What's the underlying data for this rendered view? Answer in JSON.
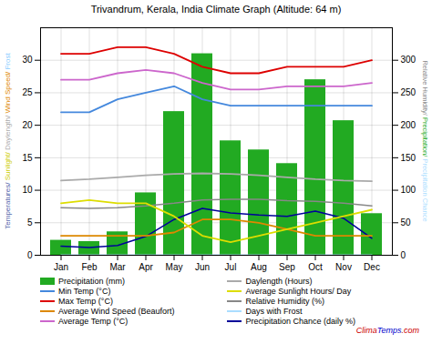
{
  "chart_data": {
    "type": "line",
    "title": "Trivandrum, Kerala, India Climate Graph (Altitude: 64 m)",
    "categories": [
      "Jan",
      "Feb",
      "Mar",
      "Apr",
      "May",
      "Jun",
      "Jul",
      "Aug",
      "Sep",
      "Oct",
      "Nov",
      "Dec"
    ],
    "series": [
      {
        "name": "Precipitation (mm)",
        "type": "bar",
        "axis": "y2",
        "color": "#22aa22",
        "values": [
          23,
          21,
          36,
          96,
          221,
          310,
          176,
          162,
          141,
          270,
          207,
          64
        ]
      },
      {
        "name": "Min Temp (°C)",
        "color": "#4488dd",
        "values": [
          22,
          22,
          24,
          25,
          26,
          24,
          23,
          23,
          23,
          23,
          23,
          23
        ]
      },
      {
        "name": "Max Temp (°C)",
        "color": "#dd0000",
        "values": [
          31,
          31,
          32,
          32,
          31,
          29,
          28,
          28,
          29,
          29,
          29,
          30
        ]
      },
      {
        "name": "Average Wind Speed (Beaufort)",
        "color": "#dd8800",
        "values": [
          3,
          3,
          3,
          3,
          3.5,
          5.5,
          5.5,
          5,
          4,
          3,
          3,
          3
        ]
      },
      {
        "name": "Average Temp (°C)",
        "color": "#cc66cc",
        "values": [
          27,
          27,
          28,
          28.5,
          28,
          26.5,
          25.5,
          25.5,
          26,
          26,
          26,
          26.5
        ]
      },
      {
        "name": "Daylength (Hours)",
        "color": "#aaaaaa",
        "values": [
          11.5,
          11.7,
          12.0,
          12.3,
          12.5,
          12.6,
          12.5,
          12.3,
          12.0,
          11.7,
          11.5,
          11.4
        ]
      },
      {
        "name": "Average Sunlight Hours/ Day",
        "color": "#dddd00",
        "values": [
          8,
          8.5,
          8,
          8,
          6,
          3,
          2,
          3,
          4,
          5,
          6,
          7
        ]
      },
      {
        "name": "Relative Humidity (%)",
        "axis": "y2",
        "color": "#888888",
        "values": [
          73,
          72,
          73,
          76,
          80,
          85,
          86,
          86,
          84,
          83,
          80,
          76
        ]
      },
      {
        "name": "Days with Frost",
        "color": "#aaddff",
        "values": [
          0,
          0,
          0,
          0,
          0,
          0,
          0,
          0,
          0,
          0,
          0,
          0
        ]
      },
      {
        "name": "Precipitation Chance (daily %)",
        "axis": "y2",
        "color": "#000099",
        "values": [
          14,
          12,
          15,
          29,
          55,
          72,
          65,
          62,
          60,
          68,
          57,
          26
        ]
      }
    ],
    "ylim": [
      0,
      35
    ],
    "yticks": [
      0,
      5,
      10,
      15,
      20,
      25,
      30
    ],
    "y2lim": [
      0,
      350
    ],
    "y2ticks": [
      0,
      50,
      100,
      150,
      200,
      250,
      300
    ],
    "grid": true,
    "legend": "bottom",
    "ylabel": [
      {
        "text": "Temperatures/",
        "color": "#5566aa"
      },
      {
        "text": "Sunlight/",
        "color": "#cccc00"
      },
      {
        "text": "Daylength/",
        "color": "#aaaaaa"
      },
      {
        "text": "Wind Speed/",
        "color": "#dd8800"
      },
      {
        "text": "Frost",
        "color": "#88ccff"
      }
    ],
    "y2label": [
      {
        "text": "Relative Humidity/",
        "color": "#888888"
      },
      {
        "text": "Precipitation/",
        "color": "#22aa22"
      },
      {
        "text": "Precipitation Chance",
        "color": "#aaddff"
      }
    ],
    "annotations": [
      {
        "text": "Clima",
        "color": "#cc0000"
      },
      {
        "text": "Temps",
        "color": "#0000cc"
      },
      {
        "text": ".com",
        "color": "#cc0000"
      }
    ]
  }
}
